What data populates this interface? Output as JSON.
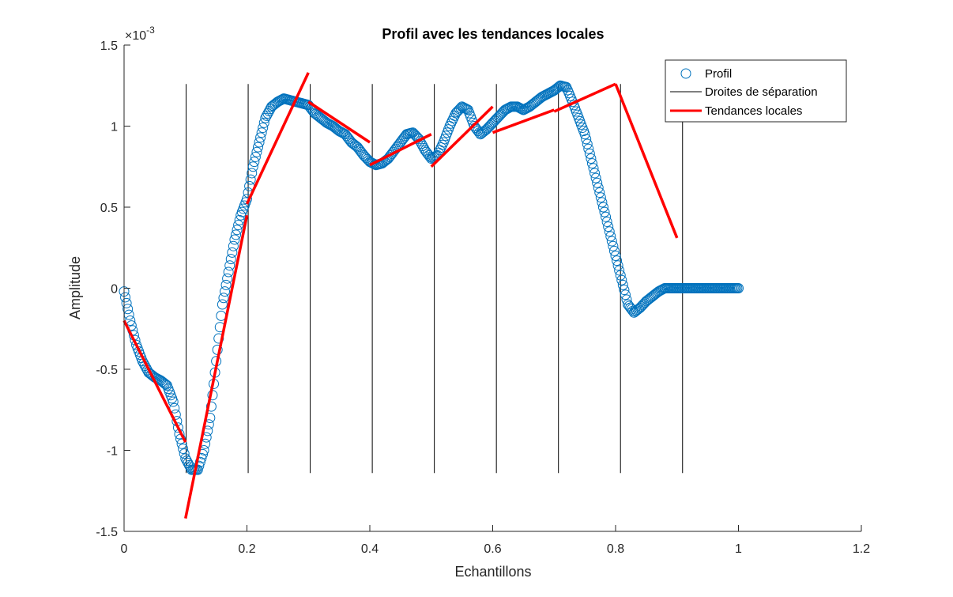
{
  "chart_data": {
    "type": "scatter",
    "title": "Profil avec les tendances locales",
    "xlabel": "Echantillons",
    "ylabel": "Amplitude",
    "exponent_label": "×10",
    "exponent_power": "-3",
    "xlim": [
      0,
      1.2
    ],
    "ylim": [
      -1.5,
      1.5
    ],
    "x_ticks": [
      0,
      0.2,
      0.4,
      0.6,
      0.8,
      1,
      1.2
    ],
    "x_tick_labels": [
      "0",
      "0.2",
      "0.4",
      "0.6",
      "0.8",
      "1",
      "1.2"
    ],
    "y_ticks": [
      -1.5,
      -1,
      -0.5,
      0,
      0.5,
      1,
      1.5
    ],
    "y_tick_labels": [
      "-1.5",
      "-1",
      "-0.5",
      "0",
      "0.5",
      "1",
      "1.5"
    ],
    "grid": false,
    "legend_position": "top-right",
    "legend": [
      "Profil",
      "Droites de séparation",
      "Tendances locales"
    ],
    "colors": {
      "profil": "#0072BD",
      "separation": "#000000",
      "trend": "#FF0000",
      "axis": "#262626"
    },
    "profil": {
      "name": "Profil",
      "x": [
        0,
        0.01,
        0.02,
        0.03,
        0.04,
        0.05,
        0.06,
        0.07,
        0.08,
        0.09,
        0.1,
        0.11,
        0.12,
        0.13,
        0.14,
        0.15,
        0.16,
        0.17,
        0.18,
        0.19,
        0.2,
        0.21,
        0.22,
        0.23,
        0.24,
        0.25,
        0.26,
        0.27,
        0.28,
        0.29,
        0.3,
        0.31,
        0.32,
        0.33,
        0.34,
        0.35,
        0.36,
        0.37,
        0.38,
        0.39,
        0.4,
        0.41,
        0.42,
        0.43,
        0.44,
        0.45,
        0.46,
        0.47,
        0.48,
        0.49,
        0.5,
        0.51,
        0.52,
        0.53,
        0.54,
        0.55,
        0.56,
        0.57,
        0.58,
        0.59,
        0.6,
        0.61,
        0.62,
        0.63,
        0.64,
        0.65,
        0.66,
        0.67,
        0.68,
        0.69,
        0.7,
        0.71,
        0.72,
        0.73,
        0.74,
        0.75,
        0.76,
        0.77,
        0.78,
        0.79,
        0.8,
        0.81,
        0.82,
        0.83,
        0.84,
        0.85,
        0.86,
        0.87,
        0.88,
        0.89,
        0.9,
        0.91,
        0.92,
        0.93,
        0.94,
        0.95,
        0.96,
        0.97,
        0.98,
        0.99,
        1.0
      ],
      "y": [
        -0.02,
        -0.2,
        -0.35,
        -0.45,
        -0.52,
        -0.55,
        -0.57,
        -0.6,
        -0.7,
        -0.9,
        -1.05,
        -1.12,
        -1.12,
        -1.0,
        -0.8,
        -0.45,
        -0.1,
        0.1,
        0.3,
        0.45,
        0.55,
        0.75,
        0.9,
        1.05,
        1.12,
        1.15,
        1.17,
        1.16,
        1.15,
        1.14,
        1.13,
        1.08,
        1.05,
        1.02,
        1.0,
        0.97,
        0.95,
        0.9,
        0.87,
        0.82,
        0.78,
        0.76,
        0.77,
        0.8,
        0.85,
        0.9,
        0.95,
        0.96,
        0.92,
        0.85,
        0.8,
        0.82,
        0.9,
        1.0,
        1.08,
        1.12,
        1.1,
        1.0,
        0.95,
        0.98,
        1.02,
        1.06,
        1.1,
        1.12,
        1.12,
        1.1,
        1.12,
        1.15,
        1.18,
        1.2,
        1.22,
        1.25,
        1.24,
        1.15,
        1.05,
        0.95,
        0.8,
        0.65,
        0.5,
        0.35,
        0.2,
        0.05,
        -0.1,
        -0.15,
        -0.12,
        -0.08,
        -0.05,
        -0.02,
        0.0,
        0.0,
        0.0,
        0.0,
        0.0,
        0.0,
        0.0,
        0.0,
        0.0,
        0.0,
        0.0,
        0.0,
        0.0
      ]
    },
    "separations": [
      0.101,
      0.202,
      0.303,
      0.404,
      0.505,
      0.606,
      0.707,
      0.808,
      0.909
    ],
    "separation_ylim": [
      -1.14,
      1.26
    ],
    "trends": [
      {
        "x": [
          0.0,
          0.1
        ],
        "y": [
          -0.2,
          -0.95
        ]
      },
      {
        "x": [
          0.1,
          0.2
        ],
        "y": [
          -1.42,
          0.45
        ]
      },
      {
        "x": [
          0.2,
          0.3
        ],
        "y": [
          0.52,
          1.33
        ]
      },
      {
        "x": [
          0.3,
          0.4
        ],
        "y": [
          1.15,
          0.9
        ]
      },
      {
        "x": [
          0.4,
          0.5
        ],
        "y": [
          0.76,
          0.95
        ]
      },
      {
        "x": [
          0.5,
          0.6
        ],
        "y": [
          0.75,
          1.12
        ]
      },
      {
        "x": [
          0.6,
          0.7
        ],
        "y": [
          0.96,
          1.1
        ]
      },
      {
        "x": [
          0.7,
          0.8
        ],
        "y": [
          1.09,
          1.26
        ]
      },
      {
        "x": [
          0.8,
          0.9
        ],
        "y": [
          1.26,
          0.31
        ]
      }
    ]
  }
}
